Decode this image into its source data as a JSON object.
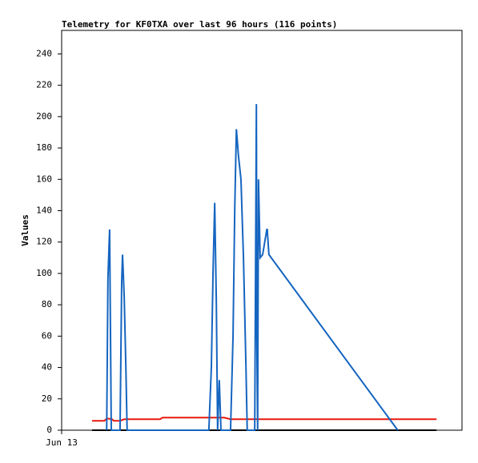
{
  "chart_data": {
    "type": "line",
    "title": "Telemetry for KF0TXA over last 96 hours (116 points)",
    "y_label": "Values",
    "xlim": [
      0,
      96
    ],
    "xticks": [
      {
        "value": 0,
        "label": "Jun 13"
      }
    ],
    "ylim": [
      0,
      255
    ],
    "yticks": [
      0,
      20,
      40,
      60,
      80,
      100,
      120,
      140,
      160,
      180,
      200,
      220,
      240
    ],
    "series": [
      {
        "color": "#000000",
        "x": [
          7.3,
          89.9
        ],
        "values": [
          0,
          0
        ]
      },
      {
        "color": "#e8190e",
        "x": [
          7.3,
          10.2,
          10.9,
          12.1,
          12.5,
          14.0,
          15.0,
          23.6,
          24.2,
          39.0,
          40.5,
          89.9
        ],
        "values": [
          6,
          6,
          7.5,
          7,
          6,
          6,
          7,
          7,
          8,
          8,
          7,
          7
        ]
      },
      {
        "color": "#1565c0",
        "x": [
          10.8,
          11.1,
          11.5,
          11.7,
          11.9,
          14.0,
          14.4,
          14.6,
          15.0,
          15.4,
          15.7,
          35.3,
          35.9,
          36.3,
          36.7,
          37.1,
          37.4,
          37.8,
          38.2,
          40.5,
          41.1,
          41.5,
          41.9,
          42.4,
          43.0,
          43.6,
          44.2,
          44.5,
          46.3,
          46.7,
          46.8,
          47.0,
          47.2,
          47.6,
          48.2,
          49.2,
          49.3,
          49.7,
          80.6
        ],
        "values": [
          0,
          97,
          128,
          65,
          0,
          0,
          95,
          112,
          85,
          40,
          0,
          0,
          40,
          100,
          145,
          80,
          0,
          32,
          0,
          0,
          60,
          140,
          192,
          175,
          160,
          110,
          40,
          0,
          0,
          208,
          60,
          0,
          160,
          110,
          112,
          128,
          128,
          112,
          0
        ]
      }
    ]
  }
}
